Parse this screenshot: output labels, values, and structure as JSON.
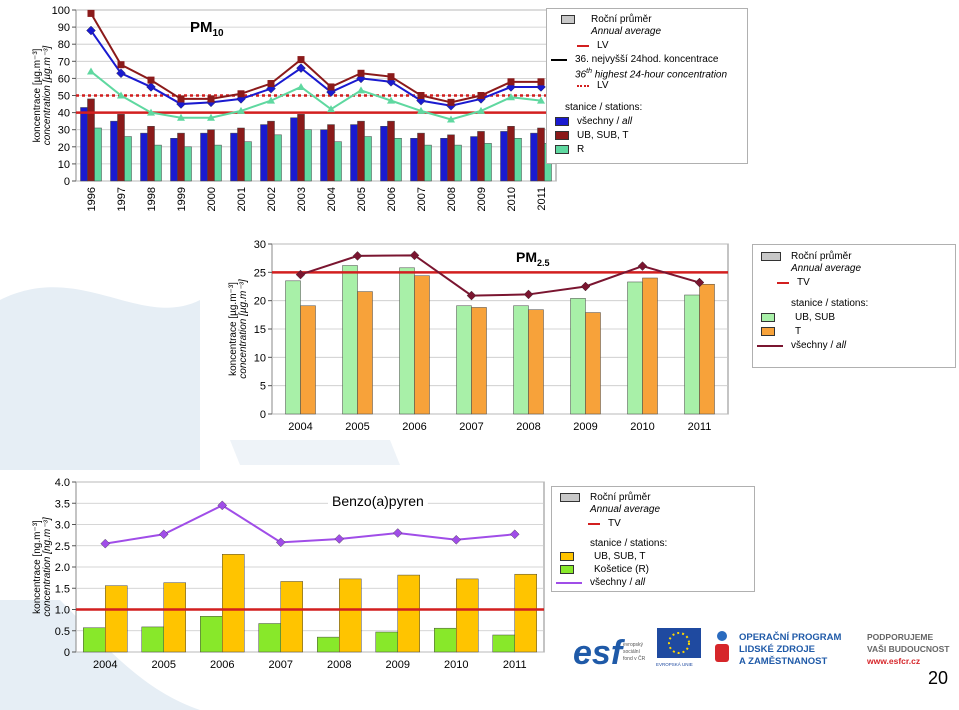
{
  "page_number": "20",
  "colors": {
    "lv_red": "#d21f1f",
    "all_blue": "#1a1ad0",
    "ub_maroon": "#8b1a1a",
    "r_green": "#5fd8a0",
    "pm25_ub": "#a8f0a8",
    "pm25_t": "#f7a23a",
    "pm25_all": "#7a1530",
    "bap_ub": "#ffc400",
    "bap_kos": "#88e82a",
    "bap_all": "#a04de8",
    "bg_shape": "#e6eef5"
  },
  "chart_data": [
    {
      "type": "bar",
      "title": "PM",
      "title_sub": "10",
      "ylabel": "koncentrace [µg.m⁻³]",
      "ylabel2": "concentration [µg.m⁻³]",
      "ylim": [
        0,
        100
      ],
      "yticks": [
        "0",
        "10",
        "20",
        "30",
        "40",
        "50",
        "60",
        "70",
        "80",
        "90",
        "100"
      ],
      "categories": [
        "1996",
        "1997",
        "1998",
        "1999",
        "2000",
        "2001",
        "2002",
        "2003",
        "2004",
        "2005",
        "2006",
        "2007",
        "2008",
        "2009",
        "2010",
        "2011"
      ],
      "bar_series": [
        {
          "name": "všechny / all",
          "values": [
            43,
            35,
            28,
            25,
            28,
            28,
            33,
            37,
            30,
            33,
            32,
            25,
            25,
            26,
            29,
            28
          ]
        },
        {
          "name": "UB, SUB, T",
          "values": [
            48,
            39,
            32,
            28,
            30,
            31,
            35,
            39,
            33,
            35,
            35,
            28,
            27,
            29,
            32,
            31
          ]
        },
        {
          "name": "R",
          "values": [
            31,
            26,
            21,
            20,
            21,
            23,
            27,
            30,
            23,
            26,
            25,
            21,
            21,
            22,
            25,
            22
          ]
        }
      ],
      "line_series": [
        {
          "name": "všechny / all",
          "values": [
            88,
            63,
            55,
            45,
            46,
            48,
            54,
            66,
            52,
            60,
            58,
            47,
            44,
            48,
            55,
            55
          ]
        },
        {
          "name": "UB, SUB, T",
          "values": [
            98,
            68,
            59,
            48,
            48,
            51,
            57,
            71,
            55,
            63,
            61,
            50,
            46,
            50,
            58,
            58
          ]
        },
        {
          "name": "R",
          "values": [
            64,
            50,
            40,
            37,
            37,
            41,
            47,
            55,
            42,
            53,
            47,
            41,
            36,
            41,
            49,
            47
          ]
        }
      ],
      "reference_lines": [
        {
          "name": "LV",
          "value": 40,
          "style": "solid"
        },
        {
          "name": "LV",
          "value": 50,
          "style": "dotted"
        }
      ],
      "legend": {
        "title_cz": "Roční průměr",
        "title_en": "Annual average",
        "lv": "LV",
        "conc_cz": "36. nejvyšší 24hod. koncentrace",
        "conc_en_pre": "36",
        "conc_en_sup": "th",
        "conc_en_post": " highest 24-hour concentration",
        "lv_dotted": "LV",
        "stations": "stanice / stations:",
        "all_cz": "všechny / ",
        "all_en": "all",
        "ub": "UB, SUB, T",
        "r": "R"
      }
    },
    {
      "type": "bar",
      "title": "PM",
      "title_sub": "2.5",
      "ylabel": "koncentrace [µg.m⁻³]",
      "ylabel2": "concentration [µg.m⁻³]",
      "ylim": [
        0,
        30
      ],
      "yticks": [
        "0",
        "5",
        "10",
        "15",
        "20",
        "25",
        "30"
      ],
      "categories": [
        "2004",
        "2005",
        "2006",
        "2007",
        "2008",
        "2009",
        "2010",
        "2011"
      ],
      "bar_series": [
        {
          "name": "UB, SUB",
          "values": [
            23.5,
            26.2,
            25.8,
            19.1,
            19.1,
            20.4,
            23.3,
            21.0
          ]
        },
        {
          "name": "T",
          "values": [
            19.1,
            21.6,
            24.4,
            18.8,
            18.4,
            17.9,
            24.0,
            22.9
          ]
        }
      ],
      "line_series": [
        {
          "name": "všechny / all",
          "values": [
            24.6,
            27.9,
            28.0,
            20.9,
            21.1,
            22.5,
            26.1,
            23.2
          ]
        }
      ],
      "reference_lines": [
        {
          "name": "TV",
          "value": 25,
          "style": "solid"
        }
      ],
      "legend": {
        "title_cz": "Roční průměr",
        "title_en": "Annual average",
        "tv": "TV",
        "stations": "stanice / stations:",
        "ub": "UB, SUB",
        "t": "T",
        "all_cz": "všechny / ",
        "all_en": "all"
      }
    },
    {
      "type": "bar",
      "title": "Benzo(a)pyren",
      "ylabel": "koncentrace [ng.m⁻³]",
      "ylabel2": "concentration [ng.m⁻³]",
      "ylim": [
        0,
        4
      ],
      "yticks": [
        "0",
        "0.5",
        "1.0",
        "1.5",
        "2.0",
        "2.5",
        "3.0",
        "3.5",
        "4.0"
      ],
      "categories": [
        "2004",
        "2005",
        "2006",
        "2007",
        "2008",
        "2009",
        "2010",
        "2011"
      ],
      "bar_series": [
        {
          "name": "UB, SUB, T",
          "values": [
            1.56,
            1.63,
            2.3,
            1.66,
            1.72,
            1.81,
            1.72,
            1.83
          ]
        },
        {
          "name": "Košetice (R)",
          "values": [
            0.57,
            0.59,
            0.84,
            0.67,
            0.35,
            0.47,
            0.56,
            0.4
          ]
        }
      ],
      "line_series": [
        {
          "name": "všechny / all",
          "values": [
            2.55,
            2.77,
            3.45,
            2.58,
            2.66,
            2.8,
            2.64,
            2.77
          ]
        }
      ],
      "reference_lines": [
        {
          "name": "TV",
          "value": 1.0,
          "style": "solid"
        }
      ],
      "legend": {
        "title_cz": "Roční průměr",
        "title_en": "Annual average",
        "tv": "TV",
        "stations": "stanice / stations:",
        "ub": "UB, SUB, T",
        "kos": "Košetice (R)",
        "all_cz": "všechny / ",
        "all_en": "all"
      }
    }
  ],
  "logos": {
    "esf_mark": "esf",
    "esf_caption_1": "evropský",
    "esf_caption_2": "sociální",
    "esf_caption_3": "fond v ČR",
    "eu_caption": "EVROPSKÁ UNIE",
    "op_line1": "OPERAČNÍ PROGRAM",
    "op_line2": "LIDSKÉ ZDROJE",
    "op_line3": "A ZAMĚSTNANOST",
    "support_line1": "PODPORUJEME",
    "support_line2": "VAŠI BUDOUCNOST",
    "support_url": "www.esfcr.cz"
  }
}
